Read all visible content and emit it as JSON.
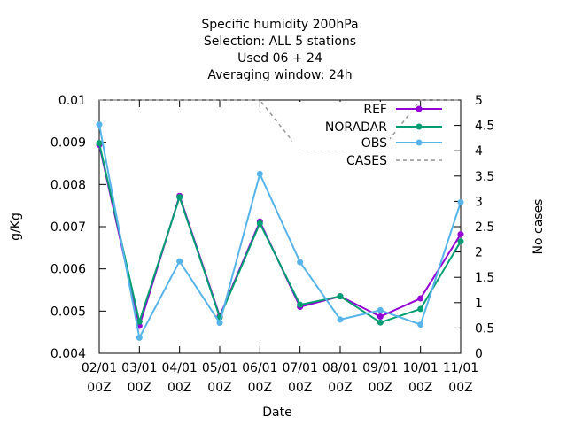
{
  "chart_data": {
    "type": "line",
    "title_lines": [
      "Specific humidity 200hPa",
      "Selection: ALL      5 stations",
      "Used  06 + 24",
      "Averaging window: 24h"
    ],
    "xlabel": "Date",
    "ylabel": "g/Kg",
    "y2label": "No cases",
    "categories": [
      "02/01 00Z",
      "03/01 00Z",
      "04/01 00Z",
      "05/01 00Z",
      "06/01 00Z",
      "07/01 00Z",
      "08/01 00Z",
      "09/01 00Z",
      "10/01 00Z",
      "11/01 00Z"
    ],
    "x_ticks": [
      {
        "top": "02/01",
        "bottom": "00Z"
      },
      {
        "top": "03/01",
        "bottom": "00Z"
      },
      {
        "top": "04/01",
        "bottom": "00Z"
      },
      {
        "top": "05/01",
        "bottom": "00Z"
      },
      {
        "top": "06/01",
        "bottom": "00Z"
      },
      {
        "top": "07/01",
        "bottom": "00Z"
      },
      {
        "top": "08/01",
        "bottom": "00Z"
      },
      {
        "top": "09/01",
        "bottom": "00Z"
      },
      {
        "top": "10/01",
        "bottom": "00Z"
      },
      {
        "top": "11/01",
        "bottom": "00Z"
      }
    ],
    "ylim": [
      0.004,
      0.01
    ],
    "yticks": [
      "0.004",
      "0.005",
      "0.006",
      "0.007",
      "0.008",
      "0.009",
      "0.01"
    ],
    "y2lim": [
      0,
      5
    ],
    "y2ticks": [
      "0",
      "0.5",
      "1",
      "1.5",
      "2",
      "2.5",
      "3",
      "3.5",
      "4",
      "4.5",
      "5"
    ],
    "legend_position": "top-right",
    "series": [
      {
        "name": "REF",
        "axis": "y",
        "color": "#9400d3",
        "values": [
          0.00894,
          0.00465,
          0.00773,
          0.00488,
          0.00712,
          0.0051,
          0.00535,
          0.00487,
          0.0053,
          0.00682
        ]
      },
      {
        "name": "NORADAR",
        "axis": "y",
        "color": "#009e73",
        "values": [
          0.00898,
          0.00475,
          0.0077,
          0.00485,
          0.00708,
          0.00515,
          0.00535,
          0.00473,
          0.00505,
          0.00665
        ]
      },
      {
        "name": "OBS",
        "axis": "y",
        "color": "#56b4e9",
        "values": [
          0.00942,
          0.00437,
          0.00618,
          0.00472,
          0.00825,
          0.00616,
          0.0048,
          0.00502,
          0.00468,
          0.00758
        ]
      },
      {
        "name": "CASES",
        "axis": "y2",
        "color": "#999999",
        "dashed": true,
        "values": [
          5,
          5,
          5,
          5,
          5,
          4,
          4,
          4,
          5,
          5
        ]
      }
    ]
  }
}
